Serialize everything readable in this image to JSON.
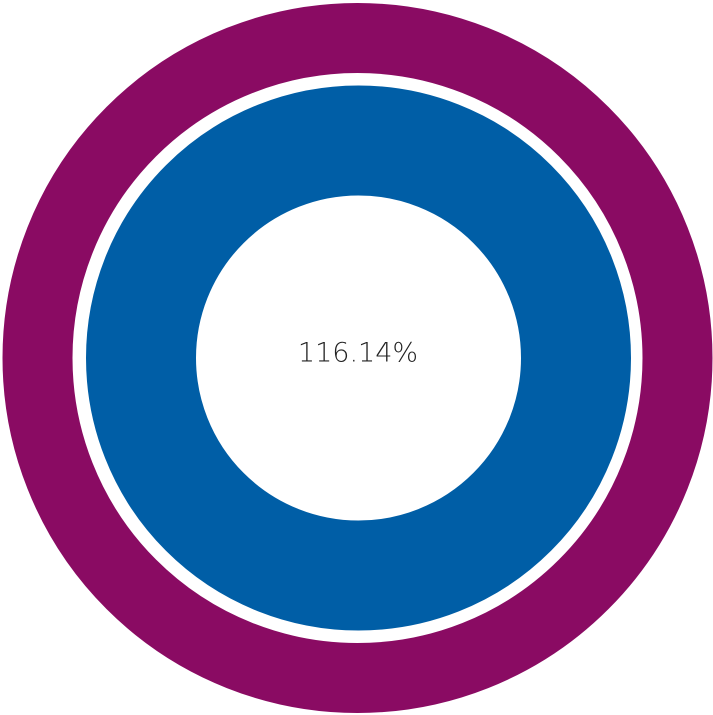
{
  "progress": {
    "label": "116.14%"
  }
}
